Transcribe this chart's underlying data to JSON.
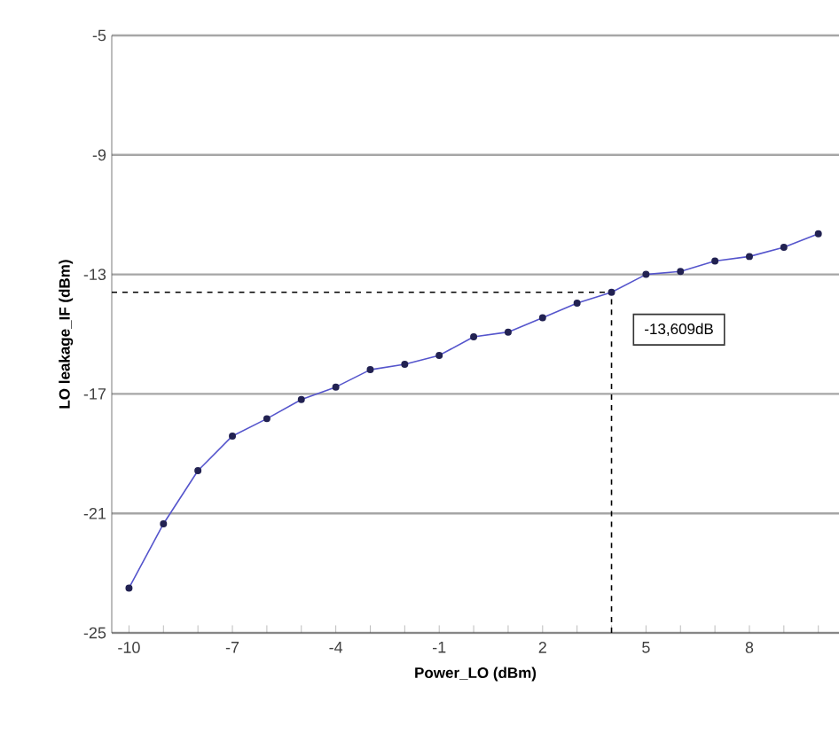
{
  "chart_data": {
    "type": "line",
    "xlabel": "Power_LO (dBm)",
    "ylabel": "LO leakage_IF (dBm)",
    "x": [
      -10,
      -9,
      -8,
      -7,
      -6,
      -5,
      -4,
      -3,
      -2,
      -1,
      0,
      1,
      2,
      3,
      4,
      5,
      6,
      7,
      8,
      9,
      10
    ],
    "series": [
      {
        "color": "#5555cc",
        "values": [
          -23.5,
          -21.35,
          -19.57,
          -18.41,
          -17.83,
          -17.19,
          -16.77,
          -16.19,
          -16.01,
          -15.71,
          -15.09,
          -14.93,
          -14.45,
          -13.96,
          -13.6,
          -13.0,
          -12.9,
          -12.55,
          -12.4,
          -12.09,
          -11.64
        ]
      }
    ],
    "marker": "circle",
    "line_style": "solid",
    "xlim": [
      -10.5,
      10.6
    ],
    "ylim": [
      -25,
      -5
    ],
    "xticks": [
      -10,
      {
        "value": -9,
        "label": null
      },
      {
        "value": -8,
        "label": null
      },
      -7,
      {
        "value": -6,
        "label": null
      },
      {
        "value": -5,
        "label": null
      },
      -4,
      {
        "value": -3,
        "label": null
      },
      {
        "value": -2,
        "label": null
      },
      -1,
      {
        "value": 0,
        "label": null
      },
      {
        "value": 1,
        "label": null
      },
      2,
      {
        "value": 3,
        "label": null
      },
      {
        "value": 4,
        "label": null
      },
      5,
      {
        "value": 6,
        "label": null
      },
      {
        "value": 7,
        "label": null
      },
      8,
      {
        "value": 9,
        "label": null
      },
      {
        "value": 10,
        "label": null
      }
    ],
    "yticks": [
      -25,
      -21,
      -17,
      -13,
      -9,
      -5
    ],
    "grid": "y",
    "ref_lines": [
      {
        "axis": "x",
        "value": 4,
        "line_style": "dashed"
      },
      {
        "axis": "y",
        "value": -13.6,
        "line_style": "dashed"
      }
    ],
    "annotations": [
      "-13,609dB"
    ]
  }
}
